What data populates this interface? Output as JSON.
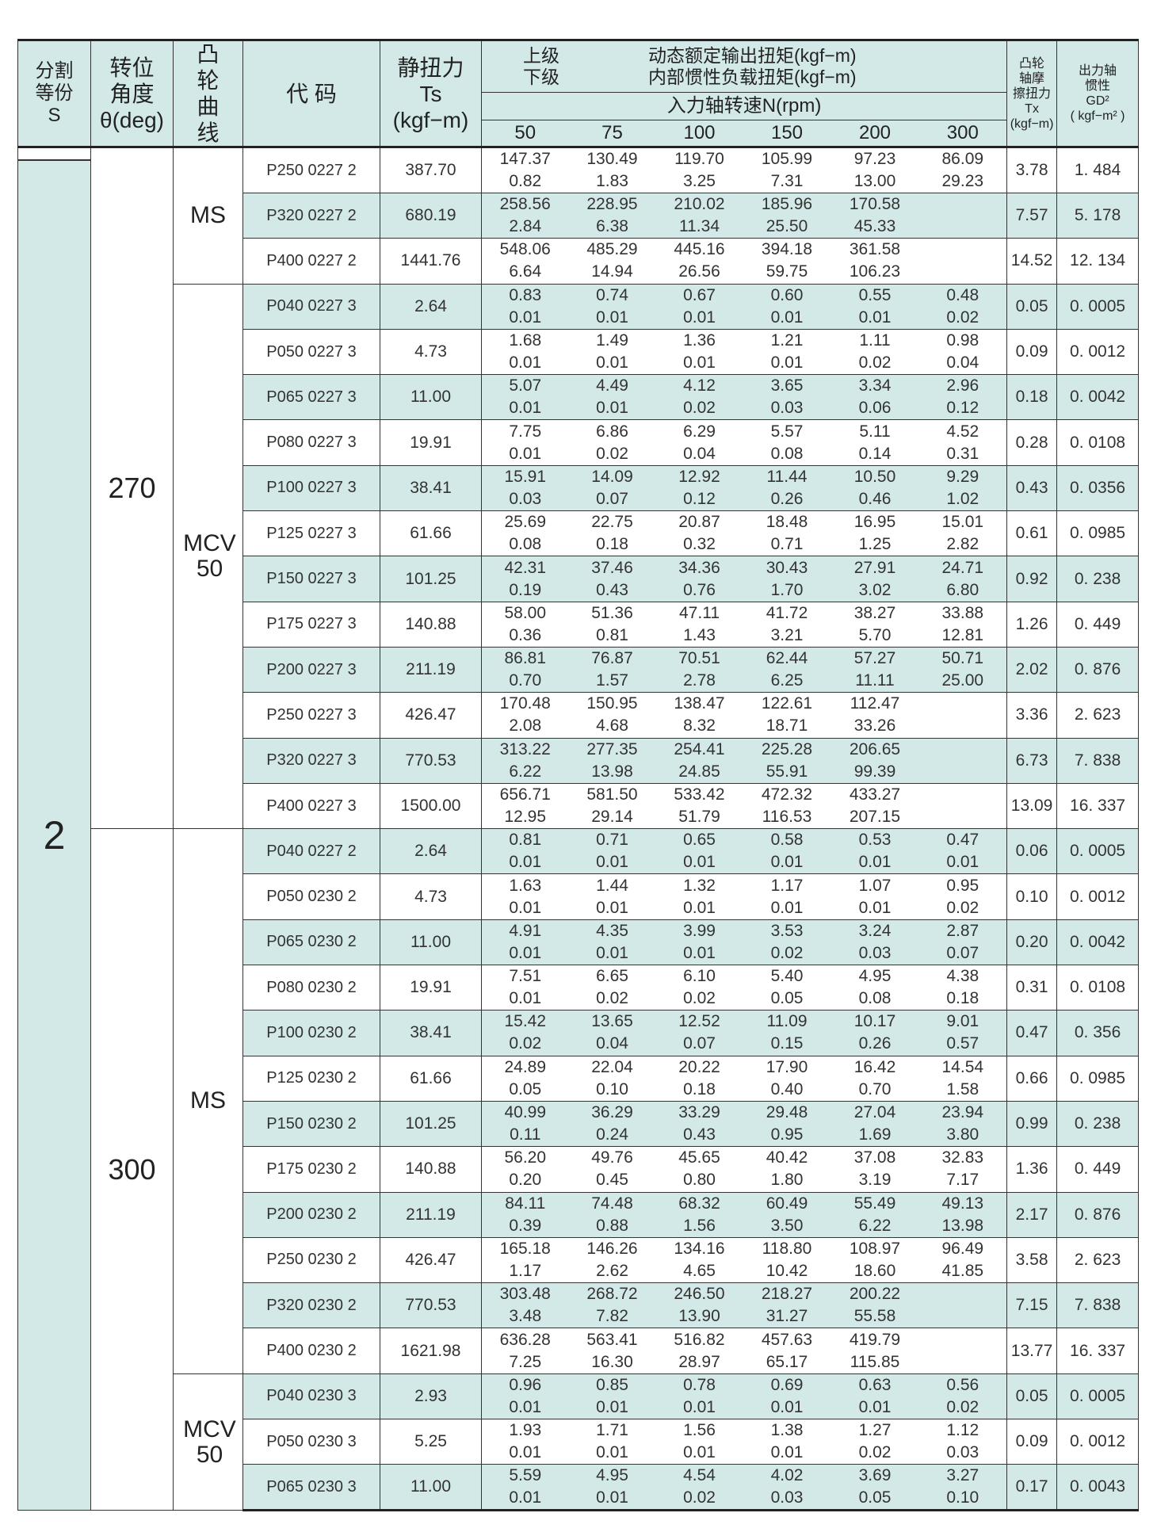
{
  "header": {
    "s": [
      "分割",
      "等份",
      "S"
    ],
    "angle": [
      "转位",
      "角度",
      "θ(deg)"
    ],
    "cam": [
      "凸",
      "轮",
      "曲",
      "线"
    ],
    "code": "代 码",
    "ts": [
      "静扭力",
      "Ts",
      "(kgf−m)"
    ],
    "level_upper": "上级",
    "level_lower": "下级",
    "dyn_upper": "动态额定输出扭矩(kgf−m)",
    "dyn_lower": "内部惯性负载扭矩(kgf−m)",
    "speed_label": "入力轴转速N(rpm)",
    "speeds": [
      "50",
      "75",
      "100",
      "150",
      "200",
      "300"
    ],
    "tx": [
      "凸轮",
      "轴摩",
      "擦扭力",
      "Tx",
      "(kgf−m)"
    ],
    "gd": [
      "出力轴",
      "惯性",
      "GD²",
      "( kgf−m² )"
    ]
  },
  "colors": {
    "band": "#d3e9e8",
    "border": "#333333"
  },
  "division": "2",
  "angles": [
    {
      "value": "270",
      "cams": [
        {
          "name": [
            "MS"
          ],
          "rows": [
            {
              "code": "P250 0227 2",
              "ts": "387.70",
              "upper": [
                "147.37",
                "130.49",
                "119.70",
                "105.99",
                "97.23",
                "86.09"
              ],
              "lower": [
                "0.82",
                "1.83",
                "3.25",
                "7.31",
                "13.00",
                "29.23"
              ],
              "tx": "3.78",
              "gd": "1. 484"
            },
            {
              "code": "P320 0227 2",
              "ts": "680.19",
              "upper": [
                "258.56",
                "228.95",
                "210.02",
                "185.96",
                "170.58",
                ""
              ],
              "lower": [
                "2.84",
                "6.38",
                "11.34",
                "25.50",
                "45.33",
                ""
              ],
              "tx": "7.57",
              "gd": "5. 178"
            },
            {
              "code": "P400 0227 2",
              "ts": "1441.76",
              "upper": [
                "548.06",
                "485.29",
                "445.16",
                "394.18",
                "361.58",
                ""
              ],
              "lower": [
                "6.64",
                "14.94",
                "26.56",
                "59.75",
                "106.23",
                ""
              ],
              "tx": "14.52",
              "gd": "12. 134"
            }
          ]
        },
        {
          "name": [
            "MCV",
            "50"
          ],
          "rows": [
            {
              "code": "P040 0227 3",
              "ts": "2.64",
              "upper": [
                "0.83",
                "0.74",
                "0.67",
                "0.60",
                "0.55",
                "0.48"
              ],
              "lower": [
                "0.01",
                "0.01",
                "0.01",
                "0.01",
                "0.01",
                "0.02"
              ],
              "tx": "0.05",
              "gd": "0. 0005"
            },
            {
              "code": "P050 0227 3",
              "ts": "4.73",
              "upper": [
                "1.68",
                "1.49",
                "1.36",
                "1.21",
                "1.11",
                "0.98"
              ],
              "lower": [
                "0.01",
                "0.01",
                "0.01",
                "0.01",
                "0.02",
                "0.04"
              ],
              "tx": "0.09",
              "gd": "0. 0012"
            },
            {
              "code": "P065 0227 3",
              "ts": "11.00",
              "upper": [
                "5.07",
                "4.49",
                "4.12",
                "3.65",
                "3.34",
                "2.96"
              ],
              "lower": [
                "0.01",
                "0.01",
                "0.02",
                "0.03",
                "0.06",
                "0.12"
              ],
              "tx": "0.18",
              "gd": "0. 0042"
            },
            {
              "code": "P080 0227 3",
              "ts": "19.91",
              "upper": [
                "7.75",
                "6.86",
                "6.29",
                "5.57",
                "5.11",
                "4.52"
              ],
              "lower": [
                "0.01",
                "0.02",
                "0.04",
                "0.08",
                "0.14",
                "0.31"
              ],
              "tx": "0.28",
              "gd": "0. 0108"
            },
            {
              "code": "P100 0227 3",
              "ts": "38.41",
              "upper": [
                "15.91",
                "14.09",
                "12.92",
                "11.44",
                "10.50",
                "9.29"
              ],
              "lower": [
                "0.03",
                "0.07",
                "0.12",
                "0.26",
                "0.46",
                "1.02"
              ],
              "tx": "0.43",
              "gd": "0. 0356"
            },
            {
              "code": "P125 0227 3",
              "ts": "61.66",
              "upper": [
                "25.69",
                "22.75",
                "20.87",
                "18.48",
                "16.95",
                "15.01"
              ],
              "lower": [
                "0.08",
                "0.18",
                "0.32",
                "0.71",
                "1.25",
                "2.82"
              ],
              "tx": "0.61",
              "gd": "0. 0985"
            },
            {
              "code": "P150 0227 3",
              "ts": "101.25",
              "upper": [
                "42.31",
                "37.46",
                "34.36",
                "30.43",
                "27.91",
                "24.71"
              ],
              "lower": [
                "0.19",
                "0.43",
                "0.76",
                "1.70",
                "3.02",
                "6.80"
              ],
              "tx": "0.92",
              "gd": "0. 238"
            },
            {
              "code": "P175 0227 3",
              "ts": "140.88",
              "upper": [
                "58.00",
                "51.36",
                "47.11",
                "41.72",
                "38.27",
                "33.88"
              ],
              "lower": [
                "0.36",
                "0.81",
                "1.43",
                "3.21",
                "5.70",
                "12.81"
              ],
              "tx": "1.26",
              "gd": "0. 449"
            },
            {
              "code": "P200 0227 3",
              "ts": "211.19",
              "upper": [
                "86.81",
                "76.87",
                "70.51",
                "62.44",
                "57.27",
                "50.71"
              ],
              "lower": [
                "0.70",
                "1.57",
                "2.78",
                "6.25",
                "11.11",
                "25.00"
              ],
              "tx": "2.02",
              "gd": "0. 876"
            },
            {
              "code": "P250 0227 3",
              "ts": "426.47",
              "upper": [
                "170.48",
                "150.95",
                "138.47",
                "122.61",
                "112.47",
                ""
              ],
              "lower": [
                "2.08",
                "4.68",
                "8.32",
                "18.71",
                "33.26",
                ""
              ],
              "tx": "3.36",
              "gd": "2. 623"
            },
            {
              "code": "P320 0227 3",
              "ts": "770.53",
              "upper": [
                "313.22",
                "277.35",
                "254.41",
                "225.28",
                "206.65",
                ""
              ],
              "lower": [
                "6.22",
                "13.98",
                "24.85",
                "55.91",
                "99.39",
                ""
              ],
              "tx": "6.73",
              "gd": "7. 838"
            },
            {
              "code": "P400 0227 3",
              "ts": "1500.00",
              "upper": [
                "656.71",
                "581.50",
                "533.42",
                "472.32",
                "433.27",
                ""
              ],
              "lower": [
                "12.95",
                "29.14",
                "51.79",
                "116.53",
                "207.15",
                ""
              ],
              "tx": "13.09",
              "gd": "16. 337"
            }
          ]
        }
      ]
    },
    {
      "value": "300",
      "cams": [
        {
          "name": [
            "MS"
          ],
          "rows": [
            {
              "code": "P040 0227 2",
              "ts": "2.64",
              "upper": [
                "0.81",
                "0.71",
                "0.65",
                "0.58",
                "0.53",
                "0.47"
              ],
              "lower": [
                "0.01",
                "0.01",
                "0.01",
                "0.01",
                "0.01",
                "0.01"
              ],
              "tx": "0.06",
              "gd": "0. 0005"
            },
            {
              "code": "P050 0230 2",
              "ts": "4.73",
              "upper": [
                "1.63",
                "1.44",
                "1.32",
                "1.17",
                "1.07",
                "0.95"
              ],
              "lower": [
                "0.01",
                "0.01",
                "0.01",
                "0.01",
                "0.01",
                "0.02"
              ],
              "tx": "0.10",
              "gd": "0. 0012"
            },
            {
              "code": "P065 0230 2",
              "ts": "11.00",
              "upper": [
                "4.91",
                "4.35",
                "3.99",
                "3.53",
                "3.24",
                "2.87"
              ],
              "lower": [
                "0.01",
                "0.01",
                "0.01",
                "0.02",
                "0.03",
                "0.07"
              ],
              "tx": "0.20",
              "gd": "0. 0042"
            },
            {
              "code": "P080 0230 2",
              "ts": "19.91",
              "upper": [
                "7.51",
                "6.65",
                "6.10",
                "5.40",
                "4.95",
                "4.38"
              ],
              "lower": [
                "0.01",
                "0.02",
                "0.02",
                "0.05",
                "0.08",
                "0.18"
              ],
              "tx": "0.31",
              "gd": "0. 0108"
            },
            {
              "code": "P100 0230 2",
              "ts": "38.41",
              "upper": [
                "15.42",
                "13.65",
                "12.52",
                "11.09",
                "10.17",
                "9.01"
              ],
              "lower": [
                "0.02",
                "0.04",
                "0.07",
                "0.15",
                "0.26",
                "0.57"
              ],
              "tx": "0.47",
              "gd": "0. 356"
            },
            {
              "code": "P125 0230 2",
              "ts": "61.66",
              "upper": [
                "24.89",
                "22.04",
                "20.22",
                "17.90",
                "16.42",
                "14.54"
              ],
              "lower": [
                "0.05",
                "0.10",
                "0.18",
                "0.40",
                "0.70",
                "1.58"
              ],
              "tx": "0.66",
              "gd": "0. 0985"
            },
            {
              "code": "P150 0230 2",
              "ts": "101.25",
              "upper": [
                "40.99",
                "36.29",
                "33.29",
                "29.48",
                "27.04",
                "23.94"
              ],
              "lower": [
                "0.11",
                "0.24",
                "0.43",
                "0.95",
                "1.69",
                "3.80"
              ],
              "tx": "0.99",
              "gd": "0. 238"
            },
            {
              "code": "P175 0230 2",
              "ts": "140.88",
              "upper": [
                "56.20",
                "49.76",
                "45.65",
                "40.42",
                "37.08",
                "32.83"
              ],
              "lower": [
                "0.20",
                "0.45",
                "0.80",
                "1.80",
                "3.19",
                "7.17"
              ],
              "tx": "1.36",
              "gd": "0. 449"
            },
            {
              "code": "P200 0230 2",
              "ts": "211.19",
              "upper": [
                "84.11",
                "74.48",
                "68.32",
                "60.49",
                "55.49",
                "49.13"
              ],
              "lower": [
                "0.39",
                "0.88",
                "1.56",
                "3.50",
                "6.22",
                "13.98"
              ],
              "tx": "2.17",
              "gd": "0. 876"
            },
            {
              "code": "P250 0230 2",
              "ts": "426.47",
              "upper": [
                "165.18",
                "146.26",
                "134.16",
                "118.80",
                "108.97",
                "96.49"
              ],
              "lower": [
                "1.17",
                "2.62",
                "4.65",
                "10.42",
                "18.60",
                "41.85"
              ],
              "tx": "3.58",
              "gd": "2. 623"
            },
            {
              "code": "P320 0230 2",
              "ts": "770.53",
              "upper": [
                "303.48",
                "268.72",
                "246.50",
                "218.27",
                "200.22",
                ""
              ],
              "lower": [
                "3.48",
                "7.82",
                "13.90",
                "31.27",
                "55.58",
                ""
              ],
              "tx": "7.15",
              "gd": "7. 838"
            },
            {
              "code": "P400 0230 2",
              "ts": "1621.98",
              "upper": [
                "636.28",
                "563.41",
                "516.82",
                "457.63",
                "419.79",
                ""
              ],
              "lower": [
                "7.25",
                "16.30",
                "28.97",
                "65.17",
                "115.85",
                ""
              ],
              "tx": "13.77",
              "gd": "16. 337"
            }
          ]
        },
        {
          "name": [
            "MCV",
            "50"
          ],
          "rows": [
            {
              "code": "P040 0230 3",
              "ts": "2.93",
              "upper": [
                "0.96",
                "0.85",
                "0.78",
                "0.69",
                "0.63",
                "0.56"
              ],
              "lower": [
                "0.01",
                "0.01",
                "0.01",
                "0.01",
                "0.01",
                "0.02"
              ],
              "tx": "0.05",
              "gd": "0. 0005"
            },
            {
              "code": "P050 0230 3",
              "ts": "5.25",
              "upper": [
                "1.93",
                "1.71",
                "1.56",
                "1.38",
                "1.27",
                "1.12"
              ],
              "lower": [
                "0.01",
                "0.01",
                "0.01",
                "0.01",
                "0.02",
                "0.03"
              ],
              "tx": "0.09",
              "gd": "0. 0012"
            },
            {
              "code": "P065 0230 3",
              "ts": "11.00",
              "upper": [
                "5.59",
                "4.95",
                "4.54",
                "4.02",
                "3.69",
                "3.27"
              ],
              "lower": [
                "0.01",
                "0.01",
                "0.02",
                "0.03",
                "0.05",
                "0.10"
              ],
              "tx": "0.17",
              "gd": "0. 0043"
            }
          ]
        }
      ]
    }
  ]
}
